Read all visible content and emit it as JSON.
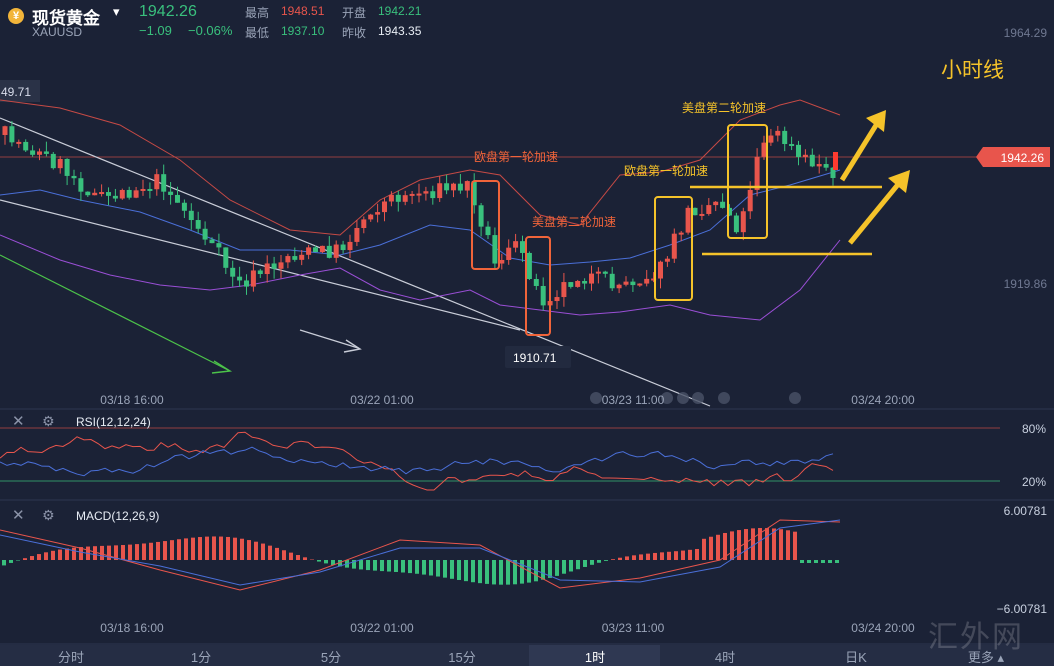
{
  "header": {
    "logo_glyph": "¥",
    "instrument_name": "现货黄金",
    "symbol": "XAUUSD",
    "price": "1942.26",
    "change": "−1.09",
    "change_pct": "−0.06%",
    "high_label": "最高",
    "high_value": "1948.51",
    "open_label": "开盘",
    "open_value": "1942.21",
    "low_label": "最低",
    "low_value": "1937.10",
    "prev_close_label": "昨收",
    "prev_close_value": "1943.35"
  },
  "price_axis": {
    "top": "1964.29",
    "mid": "1919.86",
    "left_marker": "49.71",
    "current": "1942.26"
  },
  "time_axis": [
    "03/18 16:00",
    "03/22 01:00",
    "03/23 11:00",
    "03/24 20:00"
  ],
  "annotations": {
    "timeframe": "小时线",
    "eu_first": "欧盘第一轮加速",
    "us_second_1": "美盘第二轮加速",
    "eu_first_2": "欧盘第一轮加速",
    "us_second_2": "美盘第二轮加速",
    "low_label": "1910.71"
  },
  "rsi": {
    "title": "RSI(12,12,24)",
    "level_high": "80%",
    "level_low": "20%"
  },
  "macd": {
    "title": "MACD(12,26,9)",
    "axis_top": "6.00781",
    "axis_bottom": "−6.00781"
  },
  "tabs": [
    {
      "label": "分时"
    },
    {
      "label": "1分"
    },
    {
      "label": "5分"
    },
    {
      "label": "15分"
    },
    {
      "label": "1时",
      "active": true
    },
    {
      "label": "4时"
    },
    {
      "label": "日K"
    },
    {
      "label": "更多"
    }
  ],
  "more_caret": "▴",
  "watermark": "汇外网",
  "colors": {
    "up": "#e8554c",
    "down": "#39c07d",
    "accent": "#f5c32a",
    "bg": "#1b2236"
  }
}
